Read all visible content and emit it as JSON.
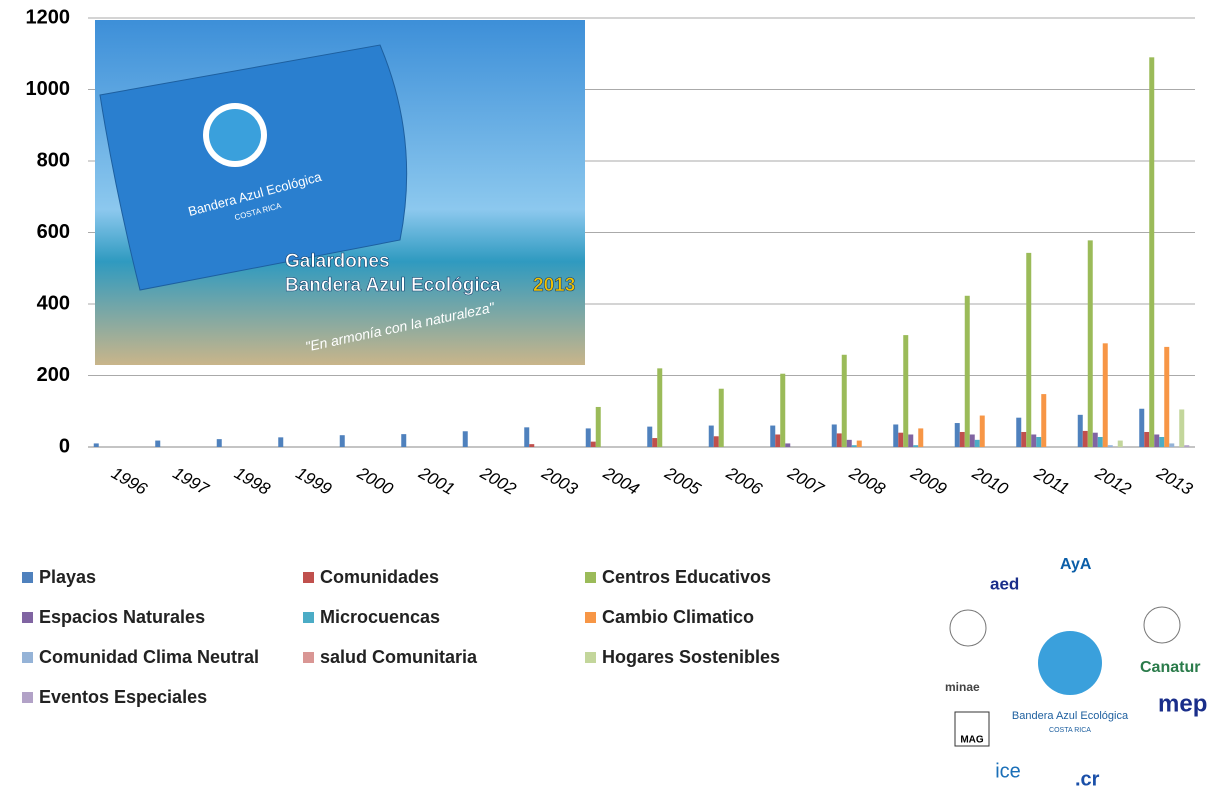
{
  "chart_data": {
    "type": "bar",
    "categories": [
      "1996",
      "1997",
      "1998",
      "1999",
      "2000",
      "2001",
      "2002",
      "2003",
      "2004",
      "2005",
      "2006",
      "2007",
      "2008",
      "2009",
      "2010",
      "2011",
      "2012",
      "2013"
    ],
    "series": [
      {
        "name": "Playas",
        "color": "#4f81bd",
        "values": [
          10,
          18,
          22,
          27,
          33,
          36,
          44,
          55,
          52,
          57,
          60,
          60,
          63,
          63,
          67,
          82,
          90,
          107
        ]
      },
      {
        "name": "Comunidades",
        "color": "#c0504d",
        "values": [
          0,
          0,
          0,
          0,
          0,
          0,
          0,
          8,
          15,
          25,
          30,
          35,
          38,
          40,
          42,
          42,
          45,
          42
        ]
      },
      {
        "name": "Centros Educativos",
        "color": "#9bbb59",
        "values": [
          0,
          0,
          0,
          0,
          0,
          0,
          0,
          0,
          112,
          220,
          163,
          205,
          258,
          313,
          423,
          543,
          578,
          1090
        ]
      },
      {
        "name": "Espacios Naturales",
        "color": "#8064a2",
        "values": [
          0,
          0,
          0,
          0,
          0,
          0,
          0,
          0,
          0,
          0,
          0,
          10,
          20,
          35,
          35,
          35,
          40,
          35
        ]
      },
      {
        "name": "Microcuencas",
        "color": "#4bacc6",
        "values": [
          0,
          0,
          0,
          0,
          0,
          0,
          0,
          0,
          0,
          0,
          0,
          0,
          5,
          5,
          20,
          28,
          28,
          28
        ]
      },
      {
        "name": "Cambio Climatico",
        "color": "#f79646",
        "values": [
          0,
          0,
          0,
          0,
          0,
          0,
          0,
          0,
          0,
          0,
          0,
          0,
          18,
          52,
          88,
          148,
          290,
          280
        ]
      },
      {
        "name": "Comunidad Clima Neutral",
        "color": "#95b3d7",
        "values": [
          0,
          0,
          0,
          0,
          0,
          0,
          0,
          0,
          0,
          0,
          0,
          0,
          0,
          0,
          0,
          0,
          5,
          10
        ]
      },
      {
        "name": "salud Comunitaria",
        "color": "#d99694",
        "values": [
          0,
          0,
          0,
          0,
          0,
          0,
          0,
          0,
          0,
          0,
          0,
          0,
          0,
          0,
          0,
          0,
          0,
          0
        ]
      },
      {
        "name": "Hogares Sostenibles",
        "color": "#c3d69b",
        "values": [
          0,
          0,
          0,
          0,
          0,
          0,
          0,
          0,
          0,
          0,
          0,
          0,
          0,
          0,
          0,
          0,
          18,
          105
        ]
      },
      {
        "name": "Eventos Especiales",
        "color": "#b2a2c7",
        "values": [
          0,
          0,
          0,
          0,
          0,
          0,
          0,
          0,
          0,
          0,
          0,
          0,
          0,
          0,
          0,
          0,
          0,
          5
        ]
      }
    ],
    "ylim": [
      0,
      1200
    ],
    "yticks": [
      0,
      200,
      400,
      600,
      800,
      1000,
      1200
    ],
    "grid": true
  },
  "artwork": {
    "flag_text": "Bandera Azul Ecológica",
    "flag_country": "COSTA RICA",
    "banner_line1": "Galardones",
    "banner_line2": "Bandera Azul Ecológica",
    "banner_year": "2013",
    "slogan": "\"En armonía con la naturaleza\""
  },
  "logos": {
    "aed": "aed",
    "aya": "AyA",
    "canatur": "Canatur",
    "mep": "mep",
    "minae": "minae",
    "mag": "MAG",
    "ice": "ice",
    "cr": ".cr",
    "center": "Bandera Azul Ecológica",
    "center_country": "COSTA RICA"
  }
}
